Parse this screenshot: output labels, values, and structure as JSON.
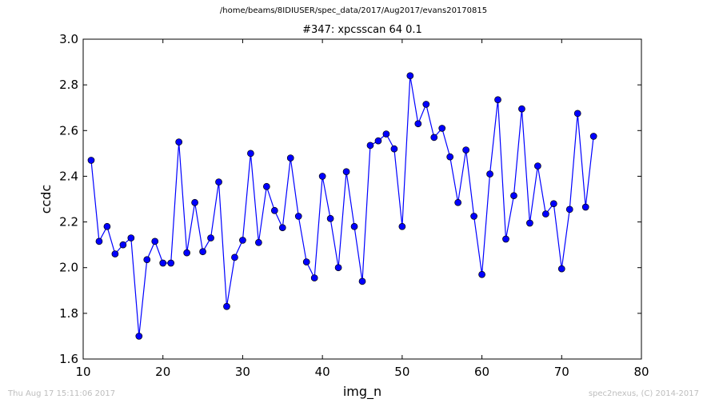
{
  "suptitle": "/home/beams/8IDIUSER/spec_data/2017/Aug2017/evans20170815",
  "footer": {
    "left": "Thu Aug 17 15:11:06 2017",
    "right": "spec2nexus, (C) 2014-2017"
  },
  "colors": {
    "series": "#0000ff",
    "marker_edge": "#000000",
    "axes": "#000000",
    "background": "#ffffff"
  },
  "chart_data": {
    "type": "line",
    "title": "#347: xpcsscan 64 0.1",
    "xlabel": "img_n",
    "ylabel": "ccdc",
    "xlim": [
      10,
      80
    ],
    "ylim": [
      1.6,
      3.0
    ],
    "xticks": [
      10,
      20,
      30,
      40,
      50,
      60,
      70,
      80
    ],
    "yticks": [
      1.6,
      1.8,
      2.0,
      2.2,
      2.4,
      2.6,
      2.8,
      3.0
    ],
    "grid": false,
    "markers": "circle",
    "x": [
      11,
      12,
      13,
      14,
      15,
      16,
      17,
      18,
      19,
      20,
      21,
      22,
      23,
      24,
      25,
      26,
      27,
      28,
      29,
      30,
      31,
      32,
      33,
      34,
      35,
      36,
      37,
      38,
      39,
      40,
      41,
      42,
      43,
      44,
      45,
      46,
      47,
      48,
      49,
      50,
      51,
      52,
      53,
      54,
      55,
      56,
      57,
      58,
      59,
      60,
      61,
      62,
      63,
      64,
      65,
      66,
      67,
      68,
      69,
      70,
      71,
      72,
      73,
      74
    ],
    "y": [
      2.47,
      2.115,
      2.18,
      2.06,
      2.1,
      2.13,
      1.7,
      2.035,
      2.115,
      2.02,
      2.02,
      2.55,
      2.065,
      2.285,
      2.07,
      2.13,
      2.375,
      1.83,
      2.045,
      2.12,
      2.5,
      2.11,
      2.355,
      2.25,
      2.175,
      2.48,
      2.225,
      2.025,
      1.955,
      2.4,
      2.215,
      2.0,
      2.42,
      2.18,
      1.94,
      2.535,
      2.555,
      2.585,
      2.52,
      2.18,
      2.84,
      2.63,
      2.715,
      2.57,
      2.61,
      2.485,
      2.285,
      2.515,
      2.225,
      1.97,
      2.41,
      2.735,
      2.125,
      2.315,
      2.695,
      2.195,
      2.445,
      2.235,
      2.28,
      1.995,
      2.255,
      2.675,
      2.265,
      2.575
    ]
  }
}
